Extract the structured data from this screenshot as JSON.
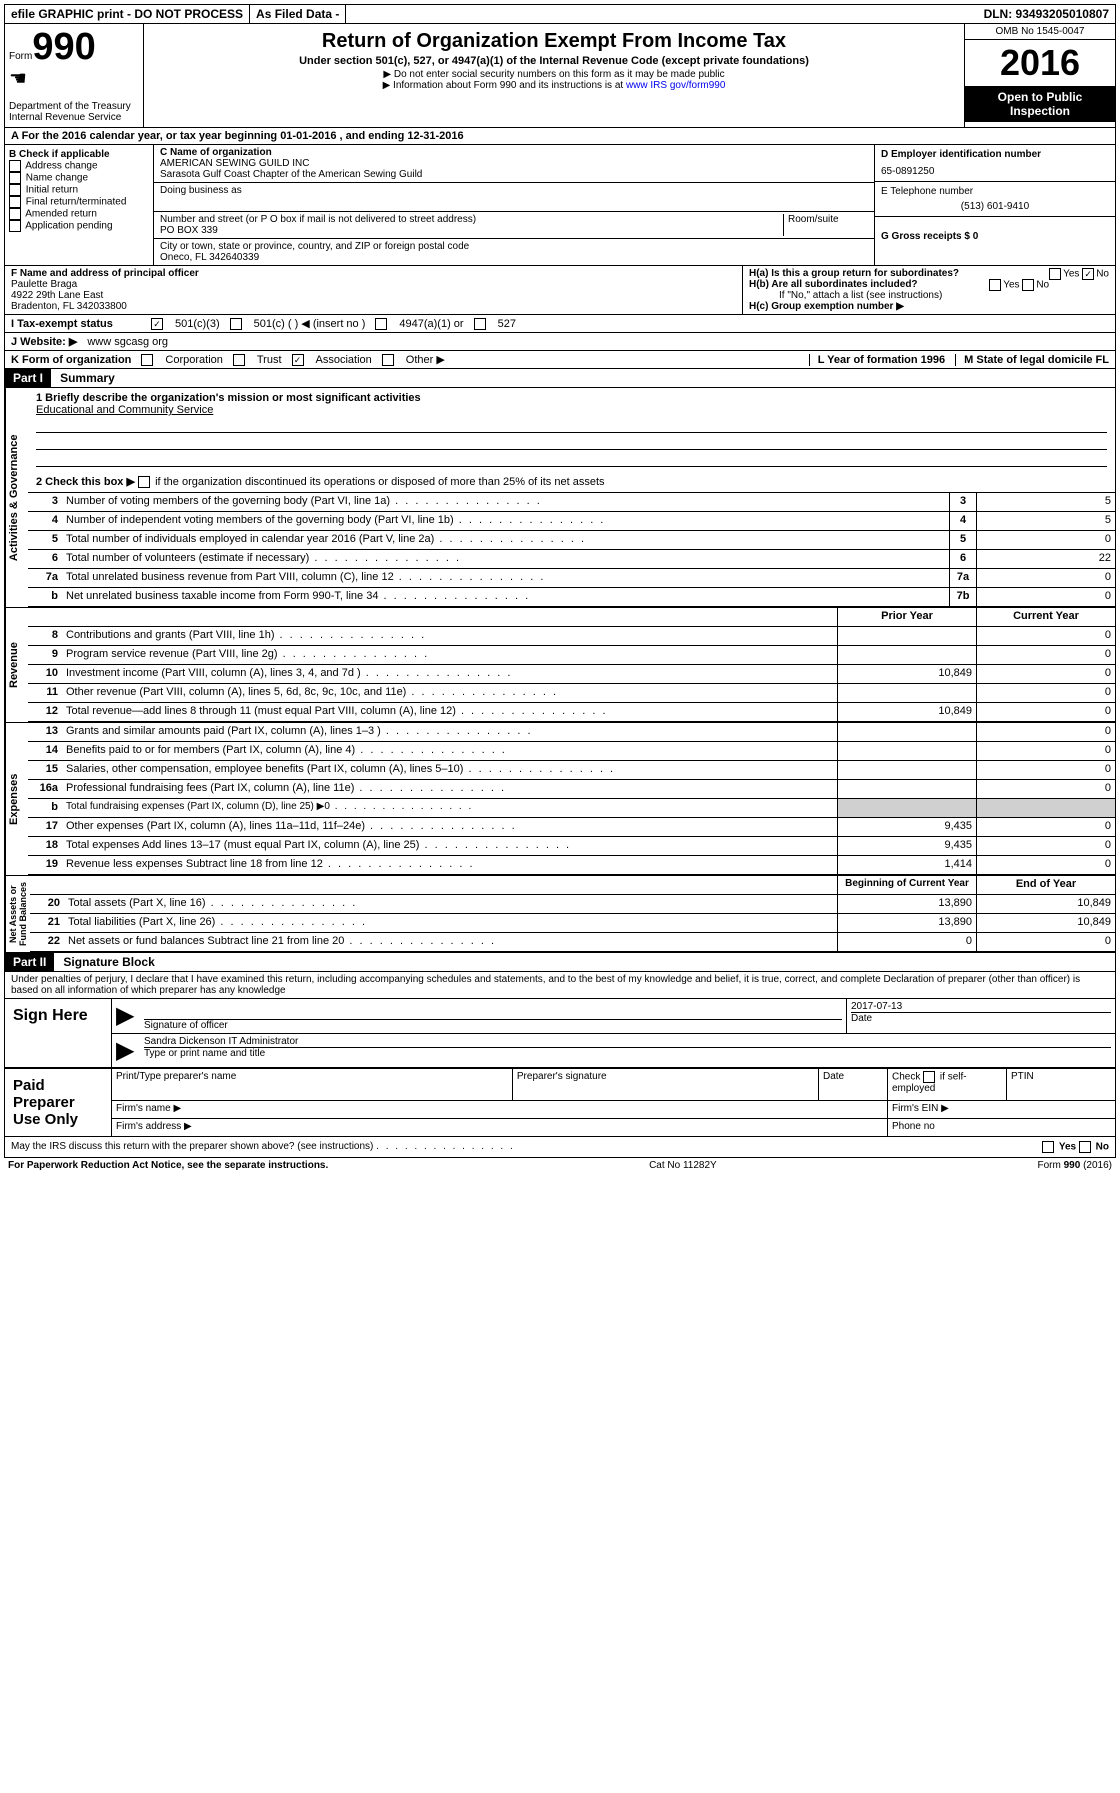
{
  "top": {
    "efile": "efile GRAPHIC print - DO NOT PROCESS",
    "asfiled": "As Filed Data -",
    "dln": "DLN: 93493205010807"
  },
  "header": {
    "form_prefix": "Form",
    "form_num": "990",
    "dept": "Department of the Treasury",
    "irs": "Internal Revenue Service",
    "title": "Return of Organization Exempt From Income Tax",
    "subtitle": "Under section 501(c), 527, or 4947(a)(1) of the Internal Revenue Code (except private foundations)",
    "note1": "▶ Do not enter social security numbers on this form as it may be made public",
    "note2": "▶ Information about Form 990 and its instructions is at ",
    "link": "www IRS gov/form990",
    "omb": "OMB No 1545-0047",
    "year": "2016",
    "open": "Open to Public Inspection"
  },
  "rowA": "A  For the 2016 calendar year, or tax year beginning 01-01-2016   , and ending 12-31-2016",
  "B": {
    "title": "B Check if applicable",
    "items": [
      "Address change",
      "Name change",
      "Initial return",
      "Final return/terminated",
      "Amended return",
      "Application pending"
    ]
  },
  "C": {
    "label": "C Name of organization",
    "name1": "AMERICAN SEWING GUILD INC",
    "name2": "Sarasota Gulf Coast Chapter of the American Sewing Guild",
    "dba_label": "Doing business as",
    "street_label": "Number and street (or P O  box if mail is not delivered to street address)",
    "room_label": "Room/suite",
    "street": "PO BOX 339",
    "city_label": "City or town, state or province, country, and ZIP or foreign postal code",
    "city": "Oneco, FL 342640339"
  },
  "D": {
    "label": "D Employer identification number",
    "value": "65-0891250"
  },
  "E": {
    "label": "E Telephone number",
    "value": "(513) 601-9410"
  },
  "G": {
    "label": "G Gross receipts $ 0"
  },
  "F": {
    "label": "F  Name and address of principal officer",
    "name": "Paulette Braga",
    "addr1": "4922 29th Lane East",
    "addr2": "Bradenton, FL 342033800"
  },
  "H": {
    "a": "H(a)  Is this a group return for subordinates?",
    "b": "H(b)  Are all subordinates included?",
    "note": "If \"No,\" attach a list  (see instructions)",
    "c": "H(c)  Group exemption number ▶"
  },
  "I": {
    "label": "I  Tax-exempt status",
    "o1": "501(c)(3)",
    "o2": "501(c) (  ) ◀ (insert no )",
    "o3": "4947(a)(1) or",
    "o4": "527"
  },
  "J": {
    "label": "J  Website: ▶",
    "value": "www sgcasg org"
  },
  "K": {
    "label": "K Form of organization",
    "opts": [
      "Corporation",
      "Trust",
      "Association",
      "Other ▶"
    ]
  },
  "L": {
    "label": "L Year of formation  1996"
  },
  "M": {
    "label": "M State of legal domicile  FL"
  },
  "partI": {
    "num": "Part I",
    "title": "Summary"
  },
  "summary": {
    "l1": "1 Briefly describe the organization's mission or most significant activities",
    "l1v": "Educational and Community Service",
    "l2": "2  Check this box ▶",
    "l2b": "if the organization discontinued its operations or disposed of more than 25% of its net assets",
    "rows_top": [
      {
        "n": "3",
        "d": "Number of voting members of the governing body (Part VI, line 1a)",
        "box": "3",
        "v": "5"
      },
      {
        "n": "4",
        "d": "Number of independent voting members of the governing body (Part VI, line 1b)",
        "box": "4",
        "v": "5"
      },
      {
        "n": "5",
        "d": "Total number of individuals employed in calendar year 2016 (Part V, line 2a)",
        "box": "5",
        "v": "0"
      },
      {
        "n": "6",
        "d": "Total number of volunteers (estimate if necessary)",
        "box": "6",
        "v": "22"
      },
      {
        "n": "7a",
        "d": "Total unrelated business revenue from Part VIII, column (C), line 12",
        "box": "7a",
        "v": "0"
      },
      {
        "n": "b",
        "d": "Net unrelated business taxable income from Form 990-T, line 34",
        "box": "7b",
        "v": "0"
      }
    ],
    "prior_h": "Prior Year",
    "curr_h": "Current Year",
    "revenue": [
      {
        "n": "8",
        "d": "Contributions and grants (Part VIII, line 1h)",
        "p": "",
        "c": "0"
      },
      {
        "n": "9",
        "d": "Program service revenue (Part VIII, line 2g)",
        "p": "",
        "c": "0"
      },
      {
        "n": "10",
        "d": "Investment income (Part VIII, column (A), lines 3, 4, and 7d )",
        "p": "10,849",
        "c": "0"
      },
      {
        "n": "11",
        "d": "Other revenue (Part VIII, column (A), lines 5, 6d, 8c, 9c, 10c, and 11e)",
        "p": "",
        "c": "0"
      },
      {
        "n": "12",
        "d": "Total revenue—add lines 8 through 11 (must equal Part VIII, column (A), line 12)",
        "p": "10,849",
        "c": "0"
      }
    ],
    "expenses": [
      {
        "n": "13",
        "d": "Grants and similar amounts paid (Part IX, column (A), lines 1–3 )",
        "p": "",
        "c": "0"
      },
      {
        "n": "14",
        "d": "Benefits paid to or for members (Part IX, column (A), line 4)",
        "p": "",
        "c": "0"
      },
      {
        "n": "15",
        "d": "Salaries, other compensation, employee benefits (Part IX, column (A), lines 5–10)",
        "p": "",
        "c": "0"
      },
      {
        "n": "16a",
        "d": "Professional fundraising fees (Part IX, column (A), line 11e)",
        "p": "",
        "c": "0"
      },
      {
        "n": "b",
        "d": "Total fundraising expenses (Part IX, column (D), line 25) ▶0",
        "p": "shaded",
        "c": "shaded"
      },
      {
        "n": "17",
        "d": "Other expenses (Part IX, column (A), lines 11a–11d, 11f–24e)",
        "p": "9,435",
        "c": "0"
      },
      {
        "n": "18",
        "d": "Total expenses  Add lines 13–17 (must equal Part IX, column (A), line 25)",
        "p": "9,435",
        "c": "0"
      },
      {
        "n": "19",
        "d": "Revenue less expenses  Subtract line 18 from line 12",
        "p": "1,414",
        "c": "0"
      }
    ],
    "beg_h": "Beginning of Current Year",
    "end_h": "End of Year",
    "netassets": [
      {
        "n": "20",
        "d": "Total assets (Part X, line 16)",
        "p": "13,890",
        "c": "10,849"
      },
      {
        "n": "21",
        "d": "Total liabilities (Part X, line 26)",
        "p": "13,890",
        "c": "10,849"
      },
      {
        "n": "22",
        "d": "Net assets or fund balances  Subtract line 21 from line 20",
        "p": "0",
        "c": "0"
      }
    ]
  },
  "partII": {
    "num": "Part II",
    "title": "Signature Block"
  },
  "perjury": "Under penalties of perjury, I declare that I have examined this return, including accompanying schedules and statements, and to the best of my knowledge and belief, it is true, correct, and complete  Declaration of preparer (other than officer) is based on all information of which preparer has any knowledge",
  "sign": {
    "here": "Sign Here",
    "sig_officer": "Signature of officer",
    "date": "2017-07-13",
    "date_l": "Date",
    "name": "Sandra Dickenson  IT Administrator",
    "name_l": "Type or print name and title"
  },
  "paid": {
    "title": "Paid Preparer Use Only",
    "prep_name": "Print/Type preparer's name",
    "prep_sig": "Preparer's signature",
    "date": "Date",
    "check": "Check",
    "self": "if self-employed",
    "ptin": "PTIN",
    "firm_name": "Firm's name  ▶",
    "firm_ein": "Firm's EIN ▶",
    "firm_addr": "Firm's address ▶",
    "phone": "Phone no"
  },
  "footer": {
    "discuss": "May the IRS discuss this return with the preparer shown above? (see instructions)",
    "paperwork": "For Paperwork Reduction Act Notice, see the separate instructions.",
    "cat": "Cat  No  11282Y",
    "form": "Form 990 (2016)"
  }
}
